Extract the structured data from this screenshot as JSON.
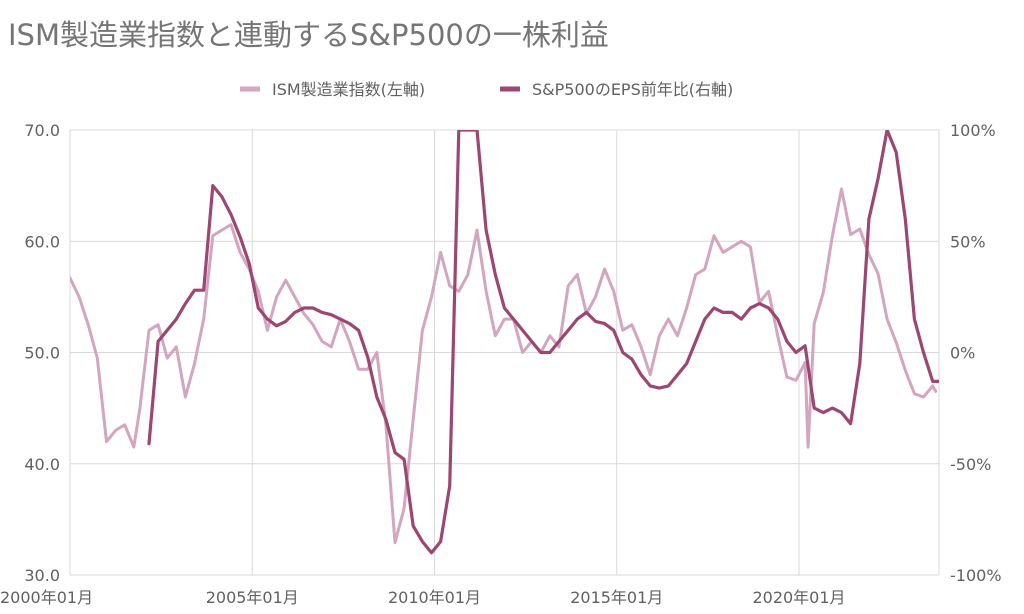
{
  "chart_data": {
    "type": "line",
    "title": "ISM製造業指数と連動するS&P500の一株利益",
    "legend_position": "top",
    "grid": true,
    "x_ticks": [
      "2000年01月",
      "2005年01月",
      "2010年01月",
      "2015年01月",
      "2020年01月"
    ],
    "y_left_ticks": [
      "30.0",
      "40.0",
      "50.0",
      "60.0",
      "70.0"
    ],
    "y_right_ticks": [
      "-100%",
      "-50%",
      "0%",
      "50%",
      "100%"
    ],
    "y_left_range": [
      30,
      70
    ],
    "y_right_range": [
      -100,
      100
    ],
    "x_range": [
      "2000-01",
      "2023-10"
    ],
    "colors": {
      "ism": "#d4a5bf",
      "eps": "#9c4672",
      "grid": "#d9d9d9",
      "title": "#757575",
      "axis_text": "#616161"
    },
    "series": [
      {
        "name": "ISM製造業指数(左軸)",
        "axis": "left",
        "color": "#d4a5bf",
        "points": [
          [
            "2000-01",
            56.7
          ],
          [
            "2000-04",
            55.0
          ],
          [
            "2000-07",
            52.5
          ],
          [
            "2000-10",
            49.5
          ],
          [
            "2001-01",
            42.0
          ],
          [
            "2001-04",
            43.0
          ],
          [
            "2001-07",
            43.5
          ],
          [
            "2001-10",
            41.5
          ],
          [
            "2001-12",
            45.0
          ],
          [
            "2002-03",
            52.0
          ],
          [
            "2002-06",
            52.5
          ],
          [
            "2002-09",
            49.5
          ],
          [
            "2002-12",
            50.5
          ],
          [
            "2003-03",
            46.0
          ],
          [
            "2003-06",
            49.0
          ],
          [
            "2003-09",
            53.0
          ],
          [
            "2003-12",
            60.5
          ],
          [
            "2004-03",
            61.0
          ],
          [
            "2004-06",
            61.5
          ],
          [
            "2004-09",
            59.0
          ],
          [
            "2004-12",
            57.5
          ],
          [
            "2005-03",
            55.5
          ],
          [
            "2005-06",
            52.0
          ],
          [
            "2005-09",
            55.0
          ],
          [
            "2005-12",
            56.5
          ],
          [
            "2006-03",
            55.0
          ],
          [
            "2006-06",
            53.5
          ],
          [
            "2006-09",
            52.5
          ],
          [
            "2006-12",
            51.0
          ],
          [
            "2007-03",
            50.5
          ],
          [
            "2007-06",
            53.0
          ],
          [
            "2007-09",
            51.0
          ],
          [
            "2007-12",
            48.5
          ],
          [
            "2008-03",
            48.5
          ],
          [
            "2008-06",
            50.0
          ],
          [
            "2008-09",
            43.5
          ],
          [
            "2008-12",
            32.9
          ],
          [
            "2009-03",
            36.0
          ],
          [
            "2009-06",
            44.0
          ],
          [
            "2009-09",
            52.0
          ],
          [
            "2009-12",
            55.0
          ],
          [
            "2010-03",
            59.0
          ],
          [
            "2010-06",
            56.0
          ],
          [
            "2010-09",
            55.5
          ],
          [
            "2010-12",
            57.0
          ],
          [
            "2011-03",
            61.0
          ],
          [
            "2011-06",
            55.5
          ],
          [
            "2011-09",
            51.5
          ],
          [
            "2011-12",
            53.0
          ],
          [
            "2012-03",
            53.0
          ],
          [
            "2012-06",
            50.0
          ],
          [
            "2012-09",
            51.0
          ],
          [
            "2012-12",
            50.0
          ],
          [
            "2013-03",
            51.5
          ],
          [
            "2013-06",
            50.5
          ],
          [
            "2013-09",
            56.0
          ],
          [
            "2013-12",
            57.0
          ],
          [
            "2014-03",
            53.5
          ],
          [
            "2014-06",
            55.0
          ],
          [
            "2014-09",
            57.5
          ],
          [
            "2014-12",
            55.5
          ],
          [
            "2015-03",
            52.0
          ],
          [
            "2015-06",
            52.5
          ],
          [
            "2015-09",
            50.5
          ],
          [
            "2015-12",
            48.0
          ],
          [
            "2016-03",
            51.5
          ],
          [
            "2016-06",
            53.0
          ],
          [
            "2016-09",
            51.5
          ],
          [
            "2016-12",
            54.0
          ],
          [
            "2017-03",
            57.0
          ],
          [
            "2017-06",
            57.5
          ],
          [
            "2017-09",
            60.5
          ],
          [
            "2017-12",
            59.0
          ],
          [
            "2018-03",
            59.5
          ],
          [
            "2018-06",
            60.0
          ],
          [
            "2018-09",
            59.5
          ],
          [
            "2018-12",
            54.5
          ],
          [
            "2019-03",
            55.5
          ],
          [
            "2019-06",
            51.5
          ],
          [
            "2019-09",
            47.8
          ],
          [
            "2019-12",
            47.5
          ],
          [
            "2020-03",
            49.1
          ],
          [
            "2020-04",
            41.5
          ],
          [
            "2020-06",
            52.6
          ],
          [
            "2020-09",
            55.4
          ],
          [
            "2020-12",
            60.5
          ],
          [
            "2021-03",
            64.7
          ],
          [
            "2021-06",
            60.6
          ],
          [
            "2021-09",
            61.1
          ],
          [
            "2021-12",
            58.8
          ],
          [
            "2022-03",
            57.1
          ],
          [
            "2022-06",
            53.0
          ],
          [
            "2022-09",
            50.9
          ],
          [
            "2022-12",
            48.4
          ],
          [
            "2023-03",
            46.3
          ],
          [
            "2023-06",
            46.0
          ],
          [
            "2023-09",
            47.0
          ],
          [
            "2023-10",
            46.5
          ]
        ]
      },
      {
        "name": "S&P500のEPS前年比(右軸)",
        "axis": "right",
        "color": "#9c4672",
        "points": [
          [
            "2002-03",
            -41
          ],
          [
            "2002-06",
            5
          ],
          [
            "2002-09",
            10
          ],
          [
            "2002-12",
            15
          ],
          [
            "2003-03",
            22
          ],
          [
            "2003-06",
            28
          ],
          [
            "2003-09",
            28
          ],
          [
            "2003-12",
            75
          ],
          [
            "2004-03",
            70
          ],
          [
            "2004-06",
            62
          ],
          [
            "2004-09",
            52
          ],
          [
            "2004-12",
            40
          ],
          [
            "2005-03",
            20
          ],
          [
            "2005-06",
            15
          ],
          [
            "2005-09",
            12
          ],
          [
            "2005-12",
            14
          ],
          [
            "2006-03",
            18
          ],
          [
            "2006-06",
            20
          ],
          [
            "2006-09",
            20
          ],
          [
            "2006-12",
            18
          ],
          [
            "2007-03",
            17
          ],
          [
            "2007-06",
            15
          ],
          [
            "2007-09",
            13
          ],
          [
            "2007-12",
            10
          ],
          [
            "2008-03",
            -2
          ],
          [
            "2008-06",
            -20
          ],
          [
            "2008-09",
            -30
          ],
          [
            "2008-12",
            -45
          ],
          [
            "2009-03",
            -48
          ],
          [
            "2009-06",
            -78
          ],
          [
            "2009-09",
            -85
          ],
          [
            "2009-12",
            -90
          ],
          [
            "2010-03",
            -85
          ],
          [
            "2010-06",
            -60
          ],
          [
            "2010-09",
            100
          ],
          [
            "2011-03",
            100
          ],
          [
            "2011-06",
            55
          ],
          [
            "2011-09",
            35
          ],
          [
            "2011-12",
            20
          ],
          [
            "2012-03",
            15
          ],
          [
            "2012-06",
            10
          ],
          [
            "2012-09",
            5
          ],
          [
            "2012-12",
            0
          ],
          [
            "2013-03",
            0
          ],
          [
            "2013-06",
            5
          ],
          [
            "2013-09",
            10
          ],
          [
            "2013-12",
            15
          ],
          [
            "2014-03",
            18
          ],
          [
            "2014-06",
            14
          ],
          [
            "2014-09",
            13
          ],
          [
            "2014-12",
            10
          ],
          [
            "2015-03",
            0
          ],
          [
            "2015-06",
            -3
          ],
          [
            "2015-09",
            -10
          ],
          [
            "2015-12",
            -15
          ],
          [
            "2016-03",
            -16
          ],
          [
            "2016-06",
            -15
          ],
          [
            "2016-09",
            -10
          ],
          [
            "2016-12",
            -5
          ],
          [
            "2017-03",
            5
          ],
          [
            "2017-06",
            15
          ],
          [
            "2017-09",
            20
          ],
          [
            "2017-12",
            18
          ],
          [
            "2018-03",
            18
          ],
          [
            "2018-06",
            15
          ],
          [
            "2018-09",
            20
          ],
          [
            "2018-12",
            22
          ],
          [
            "2019-03",
            20
          ],
          [
            "2019-06",
            15
          ],
          [
            "2019-09",
            5
          ],
          [
            "2019-12",
            0
          ],
          [
            "2020-03",
            3
          ],
          [
            "2020-06",
            -25
          ],
          [
            "2020-09",
            -27
          ],
          [
            "2020-12",
            -25
          ],
          [
            "2021-03",
            -27
          ],
          [
            "2021-06",
            -32
          ],
          [
            "2021-09",
            -5
          ],
          [
            "2021-12",
            60
          ],
          [
            "2022-03",
            78
          ],
          [
            "2022-06",
            100
          ],
          [
            "2022-09",
            90
          ],
          [
            "2022-12",
            60
          ],
          [
            "2023-03",
            15
          ],
          [
            "2023-06",
            0
          ],
          [
            "2023-09",
            -13
          ],
          [
            "2023-12",
            -13
          ]
        ]
      }
    ]
  }
}
